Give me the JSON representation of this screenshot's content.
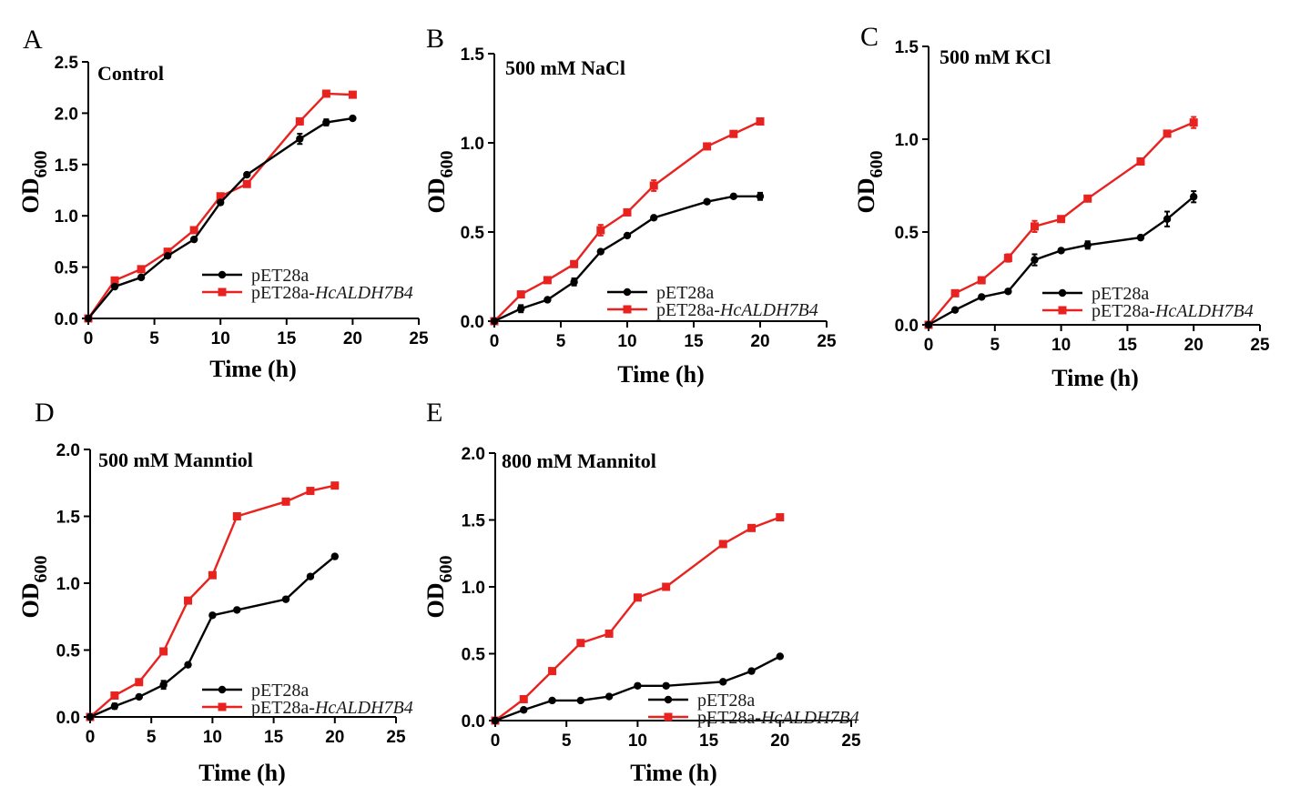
{
  "colors": {
    "control": "#000000",
    "overexpression": "#e8221f",
    "axis": "#000000"
  },
  "chart_data": [
    {
      "type": "line",
      "panel_label": "A",
      "title": "Control",
      "xlabel": "Time (h)",
      "ylabel_main": "OD",
      "ylabel_sub": "600",
      "xlim": [
        0,
        25
      ],
      "ylim": [
        0,
        2.5
      ],
      "xticks": [
        "0",
        "5",
        "10",
        "15",
        "20",
        "25"
      ],
      "yticks": [
        "0.0",
        "0.5",
        "1.0",
        "1.5",
        "2.0",
        "2.5"
      ],
      "x": [
        0,
        2,
        4,
        6,
        8,
        10,
        12,
        16,
        18,
        20
      ],
      "series": [
        {
          "name": "pEТ28a",
          "name_prefix": "pET28a",
          "name_italic": "",
          "marker": "circle",
          "color": "#000000",
          "values": [
            0,
            0.31,
            0.4,
            0.61,
            0.77,
            1.13,
            1.4,
            1.75,
            1.91,
            1.95
          ],
          "errors": [
            0,
            0.01,
            0.01,
            0.01,
            0.01,
            0.02,
            0.01,
            0.05,
            0.03,
            0.01
          ]
        },
        {
          "name": "pET28a-HcALDH7B4",
          "name_prefix": "pET28a-",
          "name_italic": "HcALDH7B4",
          "marker": "square",
          "color": "#e8221f",
          "values": [
            0,
            0.37,
            0.48,
            0.65,
            0.86,
            1.19,
            1.31,
            1.92,
            2.19,
            2.18
          ],
          "errors": [
            0,
            0.01,
            0.01,
            0.01,
            0.01,
            0.01,
            0.01,
            0.03,
            0.01,
            0.01
          ]
        }
      ]
    },
    {
      "type": "line",
      "panel_label": "B",
      "title": "500 mM NaCl",
      "xlabel": "Time (h)",
      "ylabel_main": "OD",
      "ylabel_sub": "600",
      "xlim": [
        0,
        25
      ],
      "ylim": [
        0,
        1.5
      ],
      "xticks": [
        "0",
        "5",
        "10",
        "15",
        "20",
        "25"
      ],
      "yticks": [
        "0.0",
        "0.5",
        "1.0",
        "1.5"
      ],
      "x": [
        0,
        2,
        4,
        6,
        8,
        10,
        12,
        16,
        18,
        20
      ],
      "series": [
        {
          "name": "pET28a",
          "name_prefix": "pET28a",
          "name_italic": "",
          "marker": "circle",
          "color": "#000000",
          "values": [
            0,
            0.07,
            0.12,
            0.22,
            0.39,
            0.48,
            0.58,
            0.67,
            0.7,
            0.7
          ],
          "errors": [
            0,
            0.02,
            0.01,
            0.02,
            0.01,
            0.01,
            0.01,
            0.01,
            0.01,
            0.02
          ]
        },
        {
          "name": "pET28a-HcALDH7B4",
          "name_prefix": "pET28a-",
          "name_italic": "HcALDH7B4",
          "marker": "square",
          "color": "#e8221f",
          "values": [
            0,
            0.15,
            0.23,
            0.32,
            0.51,
            0.61,
            0.76,
            0.98,
            1.05,
            1.12
          ],
          "errors": [
            0,
            0.01,
            0.01,
            0.01,
            0.03,
            0.01,
            0.03,
            0.01,
            0.01,
            0.01
          ]
        }
      ]
    },
    {
      "type": "line",
      "panel_label": "C",
      "title": "500 mM KCl",
      "xlabel": "Time (h)",
      "ylabel_main": "OD",
      "ylabel_sub": "600",
      "xlim": [
        0,
        25
      ],
      "ylim": [
        0,
        1.5
      ],
      "xticks": [
        "0",
        "5",
        "10",
        "15",
        "20",
        "25"
      ],
      "yticks": [
        "0.0",
        "0.5",
        "1.0",
        "1.5"
      ],
      "x": [
        0,
        2,
        4,
        6,
        8,
        10,
        12,
        16,
        18,
        20
      ],
      "series": [
        {
          "name": "pET28a",
          "name_prefix": "pET28a",
          "name_italic": "",
          "marker": "circle",
          "color": "#000000",
          "values": [
            0,
            0.08,
            0.15,
            0.18,
            0.35,
            0.4,
            0.43,
            0.47,
            0.57,
            0.69
          ],
          "errors": [
            0,
            0.01,
            0.01,
            0.01,
            0.03,
            0.01,
            0.02,
            0.01,
            0.04,
            0.03
          ]
        },
        {
          "name": "pET28a-HcALDH7B4",
          "name_prefix": "pET28a-",
          "name_italic": "HcALDH7B4",
          "marker": "square",
          "color": "#e8221f",
          "values": [
            0,
            0.17,
            0.24,
            0.36,
            0.53,
            0.57,
            0.68,
            0.88,
            1.03,
            1.09
          ],
          "errors": [
            0,
            0.01,
            0.01,
            0.02,
            0.03,
            0.01,
            0.01,
            0.01,
            0.01,
            0.03
          ]
        }
      ]
    },
    {
      "type": "line",
      "panel_label": "D",
      "title": "500 mM Manntiol",
      "xlabel": "Time (h)",
      "ylabel_main": "OD",
      "ylabel_sub": "600",
      "xlim": [
        0,
        25
      ],
      "ylim": [
        0,
        2.0
      ],
      "xticks": [
        "0",
        "5",
        "10",
        "15",
        "20",
        "25"
      ],
      "yticks": [
        "0.0",
        "0.5",
        "1.0",
        "1.5",
        "2.0"
      ],
      "x": [
        0,
        2,
        4,
        6,
        8,
        10,
        12,
        16,
        18,
        20
      ],
      "series": [
        {
          "name": "pET28a",
          "name_prefix": "pET28a",
          "name_italic": "",
          "marker": "circle",
          "color": "#000000",
          "values": [
            0,
            0.08,
            0.15,
            0.24,
            0.39,
            0.76,
            0.8,
            0.88,
            1.05,
            1.2
          ],
          "errors": [
            0,
            0.02,
            0.01,
            0.03,
            0.01,
            0.01,
            0.01,
            0.01,
            0.01,
            0.01
          ]
        },
        {
          "name": "pET28a-HcALDH7B4",
          "name_prefix": "pET28a-",
          "name_italic": "HcALDH7B4",
          "marker": "square",
          "color": "#e8221f",
          "values": [
            0,
            0.16,
            0.26,
            0.49,
            0.87,
            1.06,
            1.5,
            1.61,
            1.69,
            1.73
          ],
          "errors": [
            0,
            0.01,
            0.01,
            0.01,
            0.01,
            0.01,
            0.01,
            0.01,
            0.01,
            0.01
          ]
        }
      ]
    },
    {
      "type": "line",
      "panel_label": "E",
      "title": "800 mM Mannitol",
      "xlabel": "Time (h)",
      "ylabel_main": "OD",
      "ylabel_sub": "600",
      "xlim": [
        0,
        25
      ],
      "ylim": [
        0,
        2.0
      ],
      "xticks": [
        "0",
        "5",
        "10",
        "15",
        "20",
        "25"
      ],
      "yticks": [
        "0.0",
        "0.5",
        "1.0",
        "1.5",
        "2.0"
      ],
      "x": [
        0,
        2,
        4,
        6,
        8,
        10,
        12,
        16,
        18,
        20
      ],
      "series": [
        {
          "name": "pET28a",
          "name_prefix": "pET28a",
          "name_italic": "",
          "marker": "circle",
          "color": "#000000",
          "values": [
            0,
            0.08,
            0.15,
            0.15,
            0.18,
            0.26,
            0.26,
            0.29,
            0.37,
            0.48
          ],
          "errors": [
            0,
            0.01,
            0.01,
            0.01,
            0.01,
            0.01,
            0.01,
            0.01,
            0.01,
            0.01
          ]
        },
        {
          "name": "pET28a-HcALDH7B4",
          "name_prefix": "pET28a-",
          "name_italic": "HcALDH7B4",
          "marker": "square",
          "color": "#e8221f",
          "values": [
            0,
            0.16,
            0.37,
            0.58,
            0.65,
            0.92,
            1.0,
            1.32,
            1.44,
            1.52
          ],
          "errors": [
            0,
            0.01,
            0.01,
            0.01,
            0.01,
            0.02,
            0.01,
            0.01,
            0.01,
            0.01
          ]
        }
      ]
    }
  ]
}
